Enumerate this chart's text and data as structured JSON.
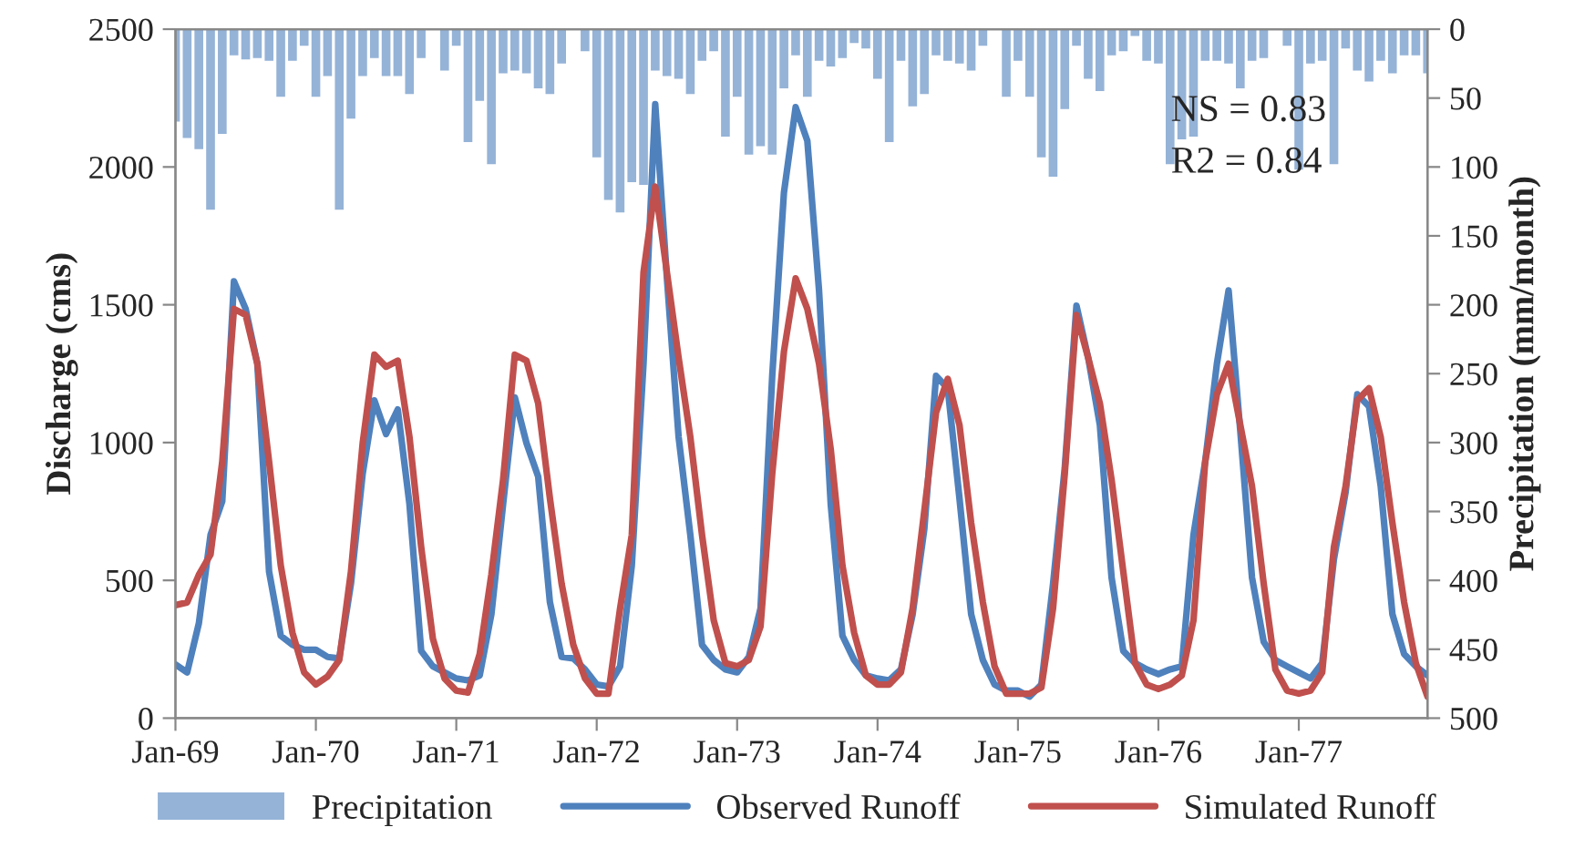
{
  "chart_data": {
    "type": "line",
    "x": [
      "1969-01",
      "1969-02",
      "1969-03",
      "1969-04",
      "1969-05",
      "1969-06",
      "1969-07",
      "1969-08",
      "1969-09",
      "1969-10",
      "1969-11",
      "1969-12",
      "1970-01",
      "1970-02",
      "1970-03",
      "1970-04",
      "1970-05",
      "1970-06",
      "1970-07",
      "1970-08",
      "1970-09",
      "1970-10",
      "1970-11",
      "1970-12",
      "1971-01",
      "1971-02",
      "1971-03",
      "1971-04",
      "1971-05",
      "1971-06",
      "1971-07",
      "1971-08",
      "1971-09",
      "1971-10",
      "1971-11",
      "1971-12",
      "1972-01",
      "1972-02",
      "1972-03",
      "1972-04",
      "1972-05",
      "1972-06",
      "1972-07",
      "1972-08",
      "1972-09",
      "1972-10",
      "1972-11",
      "1972-12",
      "1973-01",
      "1973-02",
      "1973-03",
      "1973-04",
      "1973-05",
      "1973-06",
      "1973-07",
      "1973-08",
      "1973-09",
      "1973-10",
      "1973-11",
      "1973-12",
      "1974-01",
      "1974-02",
      "1974-03",
      "1974-04",
      "1974-05",
      "1974-06",
      "1974-07",
      "1974-08",
      "1974-09",
      "1974-10",
      "1974-11",
      "1974-12",
      "1975-01",
      "1975-02",
      "1975-03",
      "1975-04",
      "1975-05",
      "1975-06",
      "1975-07",
      "1975-08",
      "1975-09",
      "1975-10",
      "1975-11",
      "1975-12",
      "1976-01",
      "1976-02",
      "1976-03",
      "1976-04",
      "1976-05",
      "1976-06",
      "1976-07",
      "1976-08",
      "1976-09",
      "1976-10",
      "1976-11",
      "1976-12",
      "1977-01",
      "1977-02",
      "1977-03",
      "1977-04",
      "1977-05",
      "1977-06",
      "1977-07",
      "1977-08",
      "1977-09",
      "1977-10",
      "1977-11",
      "1977-12"
    ],
    "series": [
      {
        "name": "Precipitation",
        "type": "bar",
        "axis": "y2",
        "color": "#95b3d7",
        "values": [
          67,
          79,
          87,
          131,
          76,
          19,
          22,
          21,
          23,
          49,
          23,
          12,
          49,
          34,
          131,
          65,
          34,
          21,
          34,
          34,
          47,
          21,
          0,
          30,
          12,
          82,
          52,
          98,
          32,
          30,
          32,
          43,
          47,
          25,
          0,
          16,
          93,
          124,
          133,
          111,
          113,
          30,
          34,
          36,
          47,
          23,
          16,
          78,
          49,
          91,
          85,
          91,
          43,
          19,
          49,
          23,
          27,
          21,
          10,
          14,
          36,
          82,
          23,
          56,
          47,
          19,
          23,
          25,
          30,
          12,
          0,
          49,
          23,
          49,
          93,
          107,
          58,
          12,
          36,
          45,
          19,
          16,
          5,
          23,
          25,
          98,
          80,
          78,
          23,
          23,
          25,
          43,
          23,
          21,
          0,
          12,
          102,
          25,
          23,
          98,
          14,
          30,
          38,
          23,
          32,
          19,
          19,
          32
        ]
      },
      {
        "name": "Observed Runoff",
        "color": "#4f81bd",
        "values": [
          195,
          166,
          344,
          665,
          787,
          1585,
          1485,
          1286,
          532,
          299,
          266,
          248,
          248,
          222,
          217,
          488,
          887,
          1153,
          1031,
          1120,
          776,
          244,
          188,
          166,
          144,
          137,
          155,
          377,
          776,
          1164,
          998,
          876,
          421,
          222,
          217,
          177,
          122,
          115,
          188,
          554,
          1286,
          2228,
          1596,
          1020,
          665,
          266,
          211,
          177,
          166,
          222,
          399,
          1242,
          1907,
          2217,
          2095,
          1552,
          776,
          299,
          211,
          155,
          144,
          137,
          177,
          377,
          687,
          1242,
          1197,
          798,
          377,
          211,
          122,
          100,
          100,
          78,
          122,
          488,
          909,
          1497,
          1308,
          1064,
          510,
          244,
          200,
          177,
          160,
          177,
          188,
          665,
          931,
          1286,
          1552,
          1042,
          510,
          277,
          211,
          188,
          166,
          144,
          200,
          576,
          820,
          1175,
          1131,
          842,
          377,
          233,
          188,
          155
        ]
      },
      {
        "name": "Simulated Runoff",
        "color": "#c0504d",
        "values": [
          410,
          420,
          520,
          594,
          931,
          1485,
          1463,
          1286,
          931,
          554,
          310,
          166,
          122,
          151,
          211,
          532,
          998,
          1319,
          1275,
          1297,
          1020,
          621,
          288,
          144,
          100,
          93,
          233,
          521,
          865,
          1319,
          1297,
          1142,
          798,
          488,
          266,
          144,
          89,
          89,
          399,
          665,
          1618,
          1929,
          1618,
          1308,
          1020,
          665,
          355,
          200,
          188,
          211,
          333,
          887,
          1330,
          1596,
          1485,
          1286,
          976,
          554,
          310,
          155,
          122,
          122,
          166,
          399,
          754,
          1109,
          1231,
          1064,
          709,
          421,
          188,
          89,
          89,
          89,
          111,
          399,
          887,
          1463,
          1308,
          1142,
          865,
          532,
          200,
          122,
          106,
          122,
          155,
          355,
          931,
          1175,
          1286,
          1064,
          842,
          488,
          177,
          100,
          89,
          100,
          166,
          621,
          842,
          1153,
          1197,
          1020,
          709,
          421,
          200,
          78
        ]
      }
    ],
    "ylabel": "Discharge (cms)",
    "y2label": "Precipitation (mm/month)",
    "xlim": [
      "1969-01",
      "1977-12"
    ],
    "xticks": [
      {
        "value": "1969-01",
        "label": "Jan-69"
      },
      {
        "value": "1970-01",
        "label": "Jan-70"
      },
      {
        "value": "1971-01",
        "label": "Jan-71"
      },
      {
        "value": "1972-01",
        "label": "Jan-72"
      },
      {
        "value": "1973-01",
        "label": "Jan-73"
      },
      {
        "value": "1974-01",
        "label": "Jan-74"
      },
      {
        "value": "1975-01",
        "label": "Jan-75"
      },
      {
        "value": "1976-01",
        "label": "Jan-76"
      },
      {
        "value": "1977-01",
        "label": "Jan-77"
      }
    ],
    "ylim": [
      0,
      2500
    ],
    "yticks": [
      0,
      500,
      1000,
      1500,
      2000,
      2500
    ],
    "y2lim": [
      500,
      0
    ],
    "y2ticks": [
      0,
      50,
      100,
      150,
      200,
      250,
      300,
      350,
      400,
      450,
      500
    ],
    "annotations": [
      "NS = 0.83",
      "R2 = 0.84"
    ],
    "legend": "bottom",
    "grid": false
  }
}
